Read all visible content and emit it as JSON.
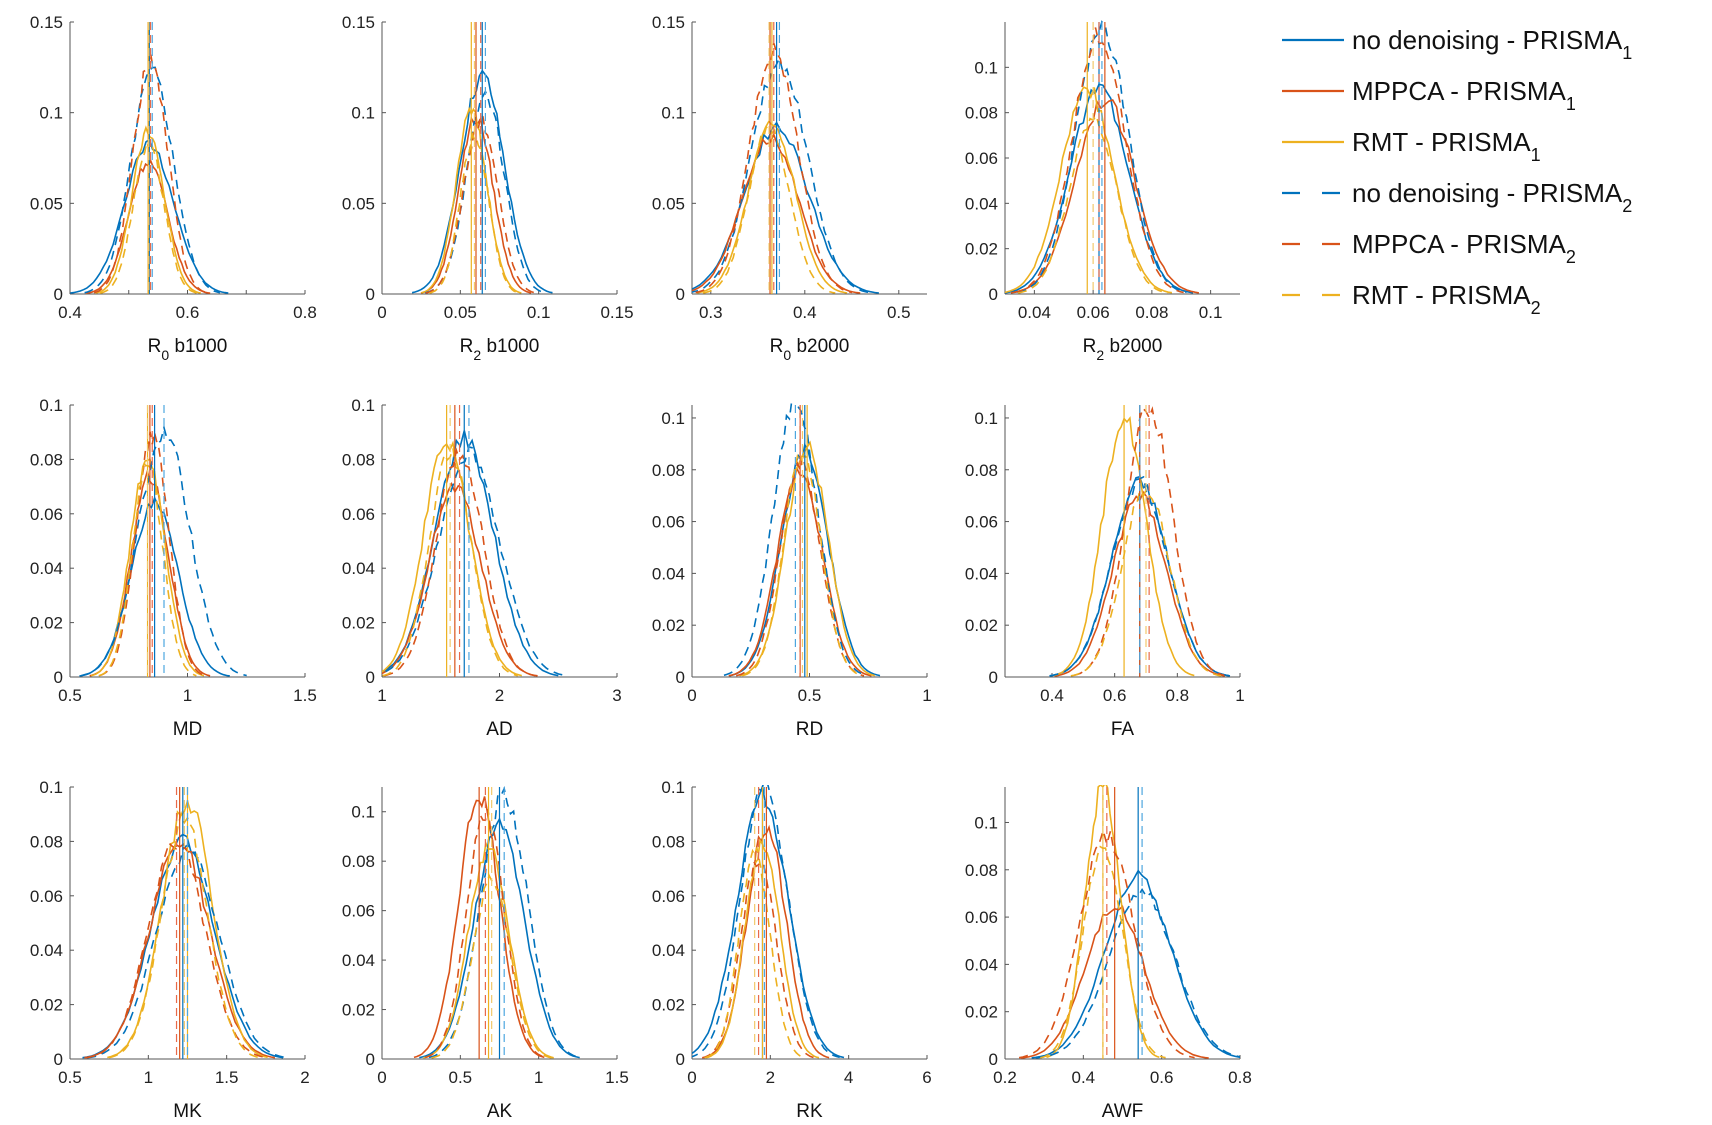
{
  "colors": {
    "dark_blue": "#0072BD",
    "red": "#D95319",
    "yellow": "#EDB120",
    "light_blue": "#4DA6DF",
    "light_red": "#E86A4A",
    "light_yellow": "#F2C96B"
  },
  "legend": [
    {
      "main": "no denoising - PRISMA",
      "sub": "1",
      "color": "#0072BD",
      "dash": false
    },
    {
      "main": "MPPCA - PRISMA",
      "sub": "1",
      "color": "#D95319",
      "dash": false
    },
    {
      "main": "RMT - PRISMA",
      "sub": "1",
      "color": "#EDB120",
      "dash": false
    },
    {
      "main": "no denoising - PRISMA",
      "sub": "2",
      "color": "#0072BD",
      "dash": true
    },
    {
      "main": "MPPCA - PRISMA",
      "sub": "2",
      "color": "#D95319",
      "dash": true
    },
    {
      "main": "RMT - PRISMA",
      "sub": "2",
      "color": "#EDB120",
      "dash": true
    }
  ],
  "chart_data": [
    {
      "type": "line",
      "xlabel": {
        "main": "R",
        "sub": "0",
        "rest": " b1000"
      },
      "xlim": [
        0.4,
        0.8
      ],
      "ylim": [
        0,
        0.15
      ],
      "xticks": [
        0.4,
        0.5,
        0.6,
        0.7,
        0.8
      ],
      "xtick_labels": [
        "0.4",
        "",
        "0.6",
        "",
        "0.8"
      ],
      "yticks": [
        0,
        0.05,
        0.1,
        0.15
      ],
      "ytick_labels": [
        "0",
        "0.05",
        "0.1",
        "0.15"
      ],
      "series": [
        {
          "name": "no denoising - PRISMA1",
          "mean": 0.535,
          "sd": 0.042,
          "peak": 0.083,
          "median": 0.535
        },
        {
          "name": "MPPCA - PRISMA1",
          "mean": 0.533,
          "sd": 0.033,
          "peak": 0.073,
          "median": 0.533
        },
        {
          "name": "RMT - PRISMA1",
          "mean": 0.533,
          "sd": 0.028,
          "peak": 0.089,
          "median": 0.533
        },
        {
          "name": "no denoising - PRISMA2",
          "mean": 0.54,
          "sd": 0.036,
          "peak": 0.123,
          "median": 0.54
        },
        {
          "name": "MPPCA - PRISMA2",
          "mean": 0.537,
          "sd": 0.03,
          "peak": 0.128,
          "median": 0.537
        },
        {
          "name": "RMT - PRISMA2",
          "mean": 0.534,
          "sd": 0.026,
          "peak": 0.082,
          "median": 0.534
        }
      ]
    },
    {
      "type": "line",
      "xlabel": {
        "main": "R",
        "sub": "2",
        "rest": " b1000"
      },
      "xlim": [
        0,
        0.15
      ],
      "ylim": [
        0,
        0.15
      ],
      "xticks": [
        0,
        0.05,
        0.1,
        0.15
      ],
      "xtick_labels": [
        "0",
        "0.05",
        "0.1",
        "0.15"
      ],
      "yticks": [
        0,
        0.05,
        0.1,
        0.15
      ],
      "ytick_labels": [
        "0",
        "0.05",
        "0.1",
        "0.15"
      ],
      "series": [
        {
          "name": "no denoising - PRISMA1",
          "mean": 0.064,
          "sd": 0.014,
          "peak": 0.12,
          "median": 0.064
        },
        {
          "name": "MPPCA - PRISMA1",
          "mean": 0.06,
          "sd": 0.011,
          "peak": 0.097,
          "median": 0.06
        },
        {
          "name": "RMT - PRISMA1",
          "mean": 0.057,
          "sd": 0.01,
          "peak": 0.1,
          "median": 0.057
        },
        {
          "name": "no denoising - PRISMA2",
          "mean": 0.066,
          "sd": 0.012,
          "peak": 0.11,
          "median": 0.066
        },
        {
          "name": "MPPCA - PRISMA2",
          "mean": 0.063,
          "sd": 0.011,
          "peak": 0.095,
          "median": 0.063
        },
        {
          "name": "RMT - PRISMA2",
          "mean": 0.059,
          "sd": 0.009,
          "peak": 0.087,
          "median": 0.059
        }
      ]
    },
    {
      "type": "line",
      "xlabel": {
        "main": "R",
        "sub": "0",
        "rest": " b2000"
      },
      "xlim": [
        0.28,
        0.53
      ],
      "ylim": [
        0,
        0.15
      ],
      "xticks": [
        0.3,
        0.4,
        0.5
      ],
      "xtick_labels": [
        "0.3",
        "0.4",
        "0.5"
      ],
      "yticks": [
        0,
        0.05,
        0.1,
        0.15
      ],
      "ytick_labels": [
        "0",
        "0.05",
        "0.1",
        "0.15"
      ],
      "series": [
        {
          "name": "no denoising - PRISMA1",
          "mean": 0.37,
          "sd": 0.034,
          "peak": 0.092,
          "median": 0.37
        },
        {
          "name": "MPPCA - PRISMA1",
          "mean": 0.363,
          "sd": 0.03,
          "peak": 0.086,
          "median": 0.363
        },
        {
          "name": "RMT - PRISMA1",
          "mean": 0.365,
          "sd": 0.025,
          "peak": 0.094,
          "median": 0.365
        },
        {
          "name": "no denoising - PRISMA2",
          "mean": 0.373,
          "sd": 0.03,
          "peak": 0.128,
          "median": 0.373
        },
        {
          "name": "MPPCA - PRISMA2",
          "mean": 0.367,
          "sd": 0.026,
          "peak": 0.133,
          "median": 0.367
        },
        {
          "name": "RMT - PRISMA2",
          "mean": 0.362,
          "sd": 0.022,
          "peak": 0.092,
          "median": 0.362
        }
      ]
    },
    {
      "type": "line",
      "xlabel": {
        "main": "R",
        "sub": "2",
        "rest": " b2000"
      },
      "xlim": [
        0.03,
        0.11
      ],
      "ylim": [
        0,
        0.12
      ],
      "xticks": [
        0.04,
        0.06,
        0.08,
        0.1
      ],
      "xtick_labels": [
        "0.04",
        "0.06",
        "0.08",
        "0.1"
      ],
      "yticks": [
        0,
        0.02,
        0.04,
        0.06,
        0.08,
        0.1
      ],
      "ytick_labels": [
        "0",
        "0.02",
        "0.04",
        "0.06",
        "0.08",
        "0.1"
      ],
      "series": [
        {
          "name": "no denoising - PRISMA1",
          "mean": 0.062,
          "sd": 0.01,
          "peak": 0.09,
          "median": 0.062
        },
        {
          "name": "MPPCA - PRISMA1",
          "mean": 0.064,
          "sd": 0.01,
          "peak": 0.086,
          "median": 0.064
        },
        {
          "name": "RMT - PRISMA1",
          "mean": 0.058,
          "sd": 0.009,
          "peak": 0.091,
          "median": 0.058
        },
        {
          "name": "no denoising - PRISMA2",
          "mean": 0.063,
          "sd": 0.009,
          "peak": 0.118,
          "median": 0.063
        },
        {
          "name": "MPPCA - PRISMA2",
          "mean": 0.062,
          "sd": 0.009,
          "peak": 0.115,
          "median": 0.062
        },
        {
          "name": "RMT - PRISMA2",
          "mean": 0.06,
          "sd": 0.008,
          "peak": 0.078,
          "median": 0.06
        }
      ]
    },
    {
      "type": "line",
      "xlabel": {
        "main": "MD",
        "sub": "",
        "rest": ""
      },
      "xlim": [
        0.5,
        1.5
      ],
      "ylim": [
        0,
        0.1
      ],
      "xticks": [
        0.5,
        1,
        1.5
      ],
      "xtick_labels": [
        "0.5",
        "1",
        "1.5"
      ],
      "yticks": [
        0,
        0.02,
        0.04,
        0.06,
        0.08,
        0.1
      ],
      "ytick_labels": [
        "0",
        "0.02",
        "0.04",
        "0.06",
        "0.08",
        "0.1"
      ],
      "series": [
        {
          "name": "no denoising - PRISMA1",
          "mean": 0.86,
          "sd": 0.1,
          "peak": 0.064,
          "median": 0.86
        },
        {
          "name": "MPPCA - PRISMA1",
          "mean": 0.84,
          "sd": 0.08,
          "peak": 0.074,
          "median": 0.84
        },
        {
          "name": "RMT - PRISMA1",
          "mean": 0.83,
          "sd": 0.075,
          "peak": 0.08,
          "median": 0.83
        },
        {
          "name": "no denoising - PRISMA2",
          "mean": 0.9,
          "sd": 0.11,
          "peak": 0.09,
          "median": 0.9
        },
        {
          "name": "MPPCA - PRISMA2",
          "mean": 0.85,
          "sd": 0.07,
          "peak": 0.089,
          "median": 0.85
        },
        {
          "name": "RMT - PRISMA2",
          "mean": 0.83,
          "sd": 0.065,
          "peak": 0.079,
          "median": 0.83
        }
      ]
    },
    {
      "type": "line",
      "xlabel": {
        "main": "AD",
        "sub": "",
        "rest": ""
      },
      "xlim": [
        1,
        3
      ],
      "ylim": [
        0,
        0.1
      ],
      "xticks": [
        1,
        2,
        3
      ],
      "xtick_labels": [
        "1",
        "2",
        "3"
      ],
      "yticks": [
        0,
        0.02,
        0.04,
        0.06,
        0.08,
        0.1
      ],
      "ytick_labels": [
        "0",
        "0.02",
        "0.04",
        "0.06",
        "0.08",
        "0.1"
      ],
      "series": [
        {
          "name": "no denoising - PRISMA1",
          "mean": 1.7,
          "sd": 0.25,
          "peak": 0.088,
          "median": 1.7
        },
        {
          "name": "MPPCA - PRISMA1",
          "mean": 1.62,
          "sd": 0.22,
          "peak": 0.07,
          "median": 1.62
        },
        {
          "name": "RMT - PRISMA1",
          "mean": 1.55,
          "sd": 0.2,
          "peak": 0.086,
          "median": 1.55
        },
        {
          "name": "no denoising - PRISMA2",
          "mean": 1.74,
          "sd": 0.26,
          "peak": 0.083,
          "median": 1.74
        },
        {
          "name": "MPPCA - PRISMA2",
          "mean": 1.66,
          "sd": 0.2,
          "peak": 0.083,
          "median": 1.66
        },
        {
          "name": "RMT - PRISMA2",
          "mean": 1.58,
          "sd": 0.18,
          "peak": 0.082,
          "median": 1.58
        }
      ]
    },
    {
      "type": "line",
      "xlabel": {
        "main": "RD",
        "sub": "",
        "rest": ""
      },
      "xlim": [
        0,
        1
      ],
      "ylim": [
        0,
        0.105
      ],
      "xticks": [
        0,
        0.5,
        1
      ],
      "xtick_labels": [
        "0",
        "0.5",
        "1"
      ],
      "yticks": [
        0,
        0.02,
        0.04,
        0.06,
        0.08,
        0.1
      ],
      "ytick_labels": [
        "0",
        "0.02",
        "0.04",
        "0.06",
        "0.08",
        "0.1"
      ],
      "series": [
        {
          "name": "no denoising - PRISMA1",
          "mean": 0.48,
          "sd": 0.1,
          "peak": 0.087,
          "median": 0.48
        },
        {
          "name": "MPPCA - PRISMA1",
          "mean": 0.46,
          "sd": 0.095,
          "peak": 0.08,
          "median": 0.46
        },
        {
          "name": "RMT - PRISMA1",
          "mean": 0.49,
          "sd": 0.09,
          "peak": 0.089,
          "median": 0.49
        },
        {
          "name": "no denoising - PRISMA2",
          "mean": 0.44,
          "sd": 0.095,
          "peak": 0.106,
          "median": 0.44
        },
        {
          "name": "MPPCA - PRISMA2",
          "mean": 0.46,
          "sd": 0.085,
          "peak": 0.083,
          "median": 0.46
        },
        {
          "name": "RMT - PRISMA2",
          "mean": 0.47,
          "sd": 0.08,
          "peak": 0.086,
          "median": 0.47
        }
      ]
    },
    {
      "type": "line",
      "xlabel": {
        "main": "FA",
        "sub": "",
        "rest": ""
      },
      "xlim": [
        0.25,
        1
      ],
      "ylim": [
        0,
        0.105
      ],
      "xticks": [
        0.4,
        0.6,
        0.8,
        1
      ],
      "xtick_labels": [
        "0.4",
        "0.6",
        "0.8",
        "1"
      ],
      "yticks": [
        0,
        0.02,
        0.04,
        0.06,
        0.08,
        0.1
      ],
      "ytick_labels": [
        "0",
        "0.02",
        "0.04",
        "0.06",
        "0.08",
        "0.1"
      ],
      "series": [
        {
          "name": "no denoising - PRISMA1",
          "mean": 0.68,
          "sd": 0.09,
          "peak": 0.075,
          "median": 0.68
        },
        {
          "name": "MPPCA - PRISMA1",
          "mean": 0.68,
          "sd": 0.085,
          "peak": 0.07,
          "median": 0.68
        },
        {
          "name": "RMT - PRISMA1",
          "mean": 0.63,
          "sd": 0.07,
          "peak": 0.1,
          "median": 0.63
        },
        {
          "name": "no denoising - PRISMA2",
          "mean": 0.68,
          "sd": 0.09,
          "peak": 0.075,
          "median": 0.68
        },
        {
          "name": "MPPCA - PRISMA2",
          "mean": 0.71,
          "sd": 0.075,
          "peak": 0.104,
          "median": 0.71
        },
        {
          "name": "RMT - PRISMA2",
          "mean": 0.7,
          "sd": 0.075,
          "peak": 0.073,
          "median": 0.7
        }
      ]
    },
    {
      "type": "line",
      "xlabel": {
        "main": "MK",
        "sub": "",
        "rest": ""
      },
      "xlim": [
        0.5,
        2
      ],
      "ylim": [
        0,
        0.1
      ],
      "xticks": [
        0.5,
        1,
        1.5,
        2
      ],
      "xtick_labels": [
        "0.5",
        "1",
        "1.5",
        "2"
      ],
      "yticks": [
        0,
        0.02,
        0.04,
        0.06,
        0.08,
        0.1
      ],
      "ytick_labels": [
        "0",
        "0.02",
        "0.04",
        "0.06",
        "0.08",
        "0.1"
      ],
      "series": [
        {
          "name": "no denoising - PRISMA1",
          "mean": 1.22,
          "sd": 0.2,
          "peak": 0.08,
          "median": 1.22
        },
        {
          "name": "MPPCA - PRISMA1",
          "mean": 1.2,
          "sd": 0.19,
          "peak": 0.08,
          "median": 1.2
        },
        {
          "name": "RMT - PRISMA1",
          "mean": 1.25,
          "sd": 0.16,
          "peak": 0.095,
          "median": 1.25
        },
        {
          "name": "no denoising - PRISMA2",
          "mean": 1.25,
          "sd": 0.2,
          "peak": 0.077,
          "median": 1.25
        },
        {
          "name": "MPPCA - PRISMA2",
          "mean": 1.18,
          "sd": 0.18,
          "peak": 0.08,
          "median": 1.18
        },
        {
          "name": "RMT - PRISMA2",
          "mean": 1.23,
          "sd": 0.15,
          "peak": 0.088,
          "median": 1.23
        }
      ]
    },
    {
      "type": "line",
      "xlabel": {
        "main": "AK",
        "sub": "",
        "rest": ""
      },
      "xlim": [
        0,
        1.5
      ],
      "ylim": [
        0,
        0.11
      ],
      "xticks": [
        0,
        0.5,
        1,
        1.5
      ],
      "xtick_labels": [
        "0",
        "0.5",
        "1",
        "1.5"
      ],
      "yticks": [
        0,
        0.02,
        0.04,
        0.06,
        0.08,
        0.1
      ],
      "ytick_labels": [
        "0",
        "0.02",
        "0.04",
        "0.06",
        "0.08",
        "0.1"
      ],
      "series": [
        {
          "name": "no denoising - PRISMA1",
          "mean": 0.75,
          "sd": 0.16,
          "peak": 0.094,
          "median": 0.75
        },
        {
          "name": "MPPCA - PRISMA1",
          "mean": 0.62,
          "sd": 0.13,
          "peak": 0.107,
          "median": 0.62
        },
        {
          "name": "RMT - PRISMA1",
          "mean": 0.68,
          "sd": 0.13,
          "peak": 0.085,
          "median": 0.68
        },
        {
          "name": "no denoising - PRISMA2",
          "mean": 0.78,
          "sd": 0.15,
          "peak": 0.107,
          "median": 0.78
        },
        {
          "name": "MPPCA - PRISMA2",
          "mean": 0.66,
          "sd": 0.12,
          "peak": 0.1,
          "median": 0.66
        },
        {
          "name": "RMT - PRISMA2",
          "mean": 0.7,
          "sd": 0.12,
          "peak": 0.073,
          "median": 0.7
        }
      ]
    },
    {
      "type": "line",
      "xlabel": {
        "main": "RK",
        "sub": "",
        "rest": ""
      },
      "xlim": [
        0,
        6
      ],
      "ylim": [
        0,
        0.1
      ],
      "xticks": [
        0,
        2,
        4,
        6
      ],
      "xtick_labels": [
        "0",
        "2",
        "4",
        "6"
      ],
      "yticks": [
        0,
        0.02,
        0.04,
        0.06,
        0.08,
        0.1
      ],
      "ytick_labels": [
        "0",
        "0.02",
        "0.04",
        "0.06",
        "0.08",
        "0.1"
      ],
      "series": [
        {
          "name": "no denoising - PRISMA1",
          "mean": 1.8,
          "sd": 0.65,
          "peak": 0.097,
          "median": 1.8
        },
        {
          "name": "MPPCA - PRISMA1",
          "mean": 1.9,
          "sd": 0.5,
          "peak": 0.085,
          "median": 1.9
        },
        {
          "name": "RMT - PRISMA1",
          "mean": 1.8,
          "sd": 0.45,
          "peak": 0.079,
          "median": 1.8
        },
        {
          "name": "no denoising - PRISMA2",
          "mean": 1.85,
          "sd": 0.6,
          "peak": 0.1,
          "median": 1.85
        },
        {
          "name": "MPPCA - PRISMA2",
          "mean": 1.7,
          "sd": 0.45,
          "peak": 0.074,
          "median": 1.7
        },
        {
          "name": "RMT - PRISMA2",
          "mean": 1.6,
          "sd": 0.4,
          "peak": 0.076,
          "median": 1.6
        }
      ]
    },
    {
      "type": "line",
      "xlabel": {
        "main": "AWF",
        "sub": "",
        "rest": ""
      },
      "xlim": [
        0.2,
        0.8
      ],
      "ylim": [
        0,
        0.115
      ],
      "xticks": [
        0.2,
        0.4,
        0.6,
        0.8
      ],
      "xtick_labels": [
        "0.2",
        "0.4",
        "0.6",
        "0.8"
      ],
      "yticks": [
        0,
        0.02,
        0.04,
        0.06,
        0.08,
        0.1
      ],
      "ytick_labels": [
        "0",
        "0.02",
        "0.04",
        "0.06",
        "0.08",
        "0.1"
      ],
      "series": [
        {
          "name": "no denoising - PRISMA1",
          "mean": 0.54,
          "sd": 0.085,
          "peak": 0.077,
          "median": 0.54
        },
        {
          "name": "MPPCA - PRISMA1",
          "mean": 0.48,
          "sd": 0.075,
          "peak": 0.065,
          "median": 0.48
        },
        {
          "name": "RMT - PRISMA1",
          "mean": 0.45,
          "sd": 0.045,
          "peak": 0.115,
          "median": 0.45
        },
        {
          "name": "no denoising - PRISMA2",
          "mean": 0.55,
          "sd": 0.085,
          "peak": 0.07,
          "median": 0.55
        },
        {
          "name": "MPPCA - PRISMA2",
          "mean": 0.46,
          "sd": 0.07,
          "peak": 0.094,
          "median": 0.46
        },
        {
          "name": "RMT - PRISMA2",
          "mean": 0.45,
          "sd": 0.05,
          "peak": 0.09,
          "median": 0.45
        }
      ]
    }
  ]
}
